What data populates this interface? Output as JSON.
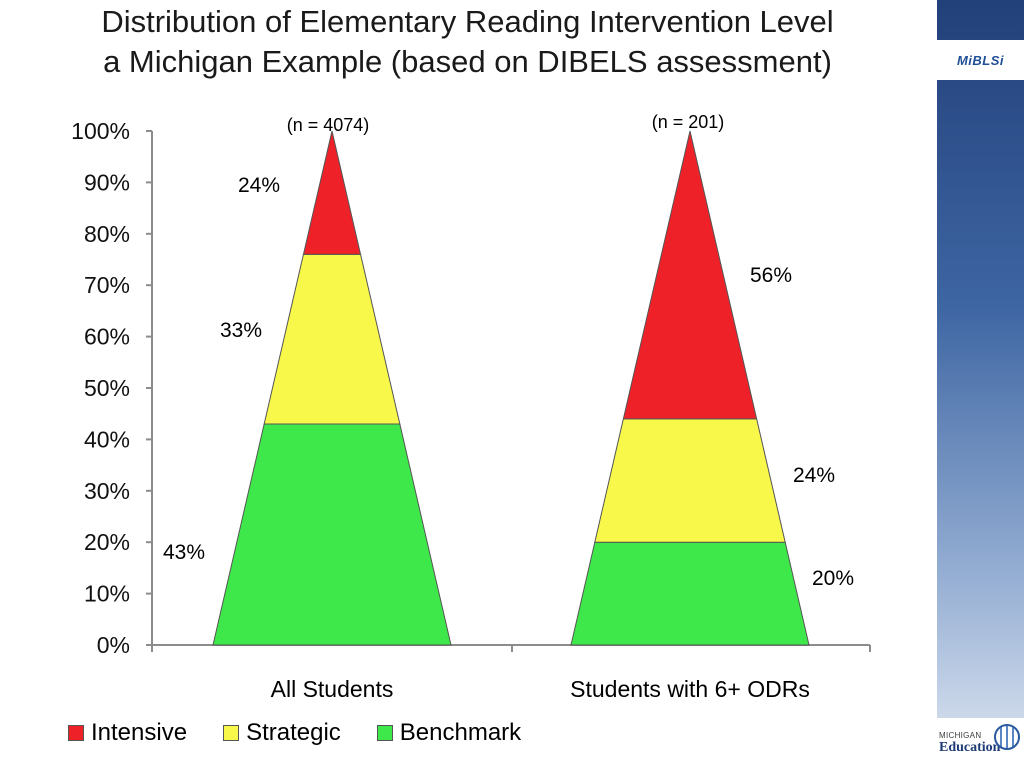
{
  "title": {
    "line1": "Distribution of Elementary Reading Intervention Level",
    "line2": "a Michigan Example (based on DIBELS assessment)"
  },
  "branding": {
    "mibls": "MiBLSi",
    "mde_small": "MICHIGAN",
    "mde_big": "Education"
  },
  "chart_data": {
    "type": "bar",
    "categories": [
      "All Students",
      "Students with 6+ ODRs"
    ],
    "n_labels": [
      "(n = 4074)",
      "(n = 201)"
    ],
    "series": [
      {
        "name": "Benchmark",
        "values": [
          43,
          20
        ],
        "labels": [
          "43%",
          "20%"
        ],
        "color": "#3fe84a"
      },
      {
        "name": "Strategic",
        "values": [
          33,
          24
        ],
        "labels": [
          "33%",
          "24%"
        ],
        "color": "#f8f84a"
      },
      {
        "name": "Intensive",
        "values": [
          24,
          56
        ],
        "labels": [
          "24%",
          "56%"
        ],
        "color": "#ee2129"
      }
    ],
    "stacked": true,
    "shape": "triangle",
    "ylim": [
      0,
      100
    ],
    "yticks": [
      "0%",
      "10%",
      "20%",
      "30%",
      "40%",
      "50%",
      "60%",
      "70%",
      "80%",
      "90%",
      "100%"
    ],
    "grid": false,
    "legend_position": "bottom"
  }
}
